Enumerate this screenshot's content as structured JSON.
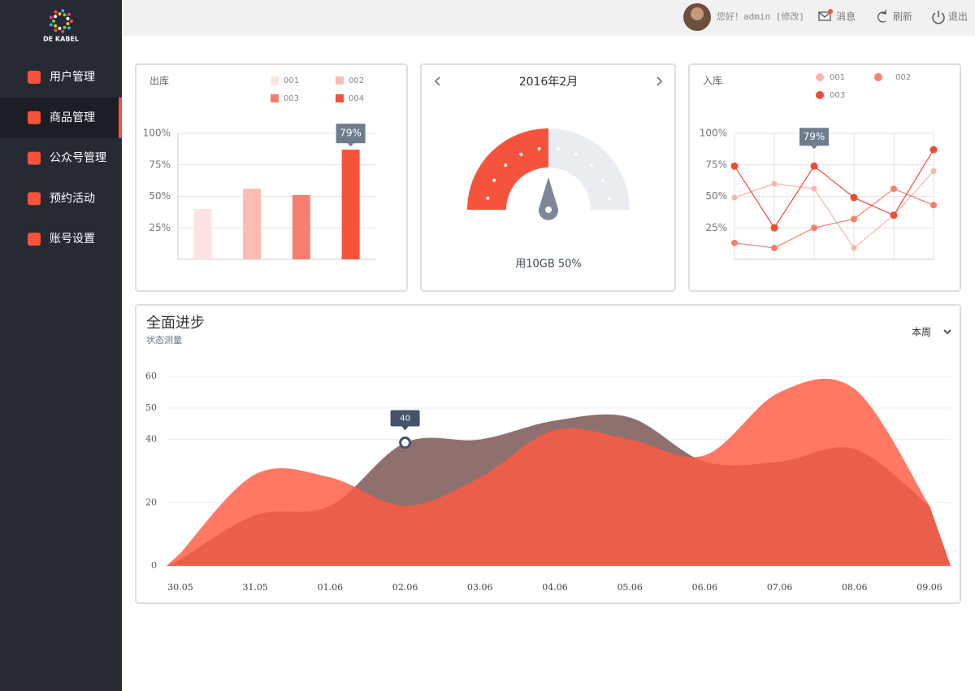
{
  "brand": "DE KABEL",
  "header": {
    "greeting": "您好！admin [修改]",
    "messages": "消息",
    "refresh": "刷新",
    "logout": "退出"
  },
  "sidebar": {
    "items": [
      "用户管理",
      "商品管理",
      "公众号管理",
      "预约活动",
      "账号设置"
    ],
    "active": 1
  },
  "chart_data": [
    {
      "type": "bar",
      "title": "出库",
      "categories": [
        "001",
        "002",
        "003",
        "004"
      ],
      "values": [
        40,
        56,
        51,
        87
      ],
      "colors": [
        "#fde3df",
        "#fbbcb1",
        "#f77e6e",
        "#f5533d"
      ],
      "ylim": [
        0,
        100
      ],
      "yticks": [
        {
          "value": 25,
          "label": "25%"
        },
        {
          "value": 50,
          "label": "50%"
        },
        {
          "value": 75,
          "label": "75%"
        },
        {
          "value": 100,
          "label": "100%"
        }
      ],
      "grid": true,
      "tooltip": "79%"
    },
    {
      "type": "gauge",
      "title": "2016年2月",
      "value": 50,
      "label": "用10GB 50%",
      "ylim": [
        0,
        100
      ],
      "color": "#f5533d",
      "track_color": "#e9ecf1"
    },
    {
      "type": "line",
      "title": "入库",
      "categories": [
        null,
        null,
        null,
        null,
        null,
        null
      ],
      "series": [
        {
          "name": "001",
          "color": "#f9b4a8",
          "values": [
            49,
            60,
            56,
            9,
            35,
            70
          ]
        },
        {
          "name": "002",
          "color": "#f77e6e",
          "values": [
            13,
            9,
            25,
            32,
            56,
            43
          ]
        },
        {
          "name": "003",
          "color": "#f24a35",
          "values": [
            74,
            25,
            74,
            49,
            35,
            87
          ]
        }
      ],
      "ylim": [
        0,
        100
      ],
      "yticks": [
        {
          "value": 25,
          "label": "25%"
        },
        {
          "value": 50,
          "label": "50%"
        },
        {
          "value": 75,
          "label": "75%"
        },
        {
          "value": 100,
          "label": "100%"
        }
      ],
      "grid": true,
      "tooltip": "79%"
    },
    {
      "type": "area",
      "title": "全面进步",
      "subtitle": "状态测量",
      "period": "本周",
      "categories": [
        "30.05",
        "31.05",
        "01.06",
        "02.06",
        "03.06",
        "04.06",
        "05.06",
        "06.06",
        "07.06",
        "08.06",
        "09.06"
      ],
      "series": [
        {
          "color": "#8e706f",
          "values": [
            2,
            16,
            19,
            39,
            40,
            46,
            47,
            33,
            33,
            37,
            19
          ]
        },
        {
          "color": "#ff5a42",
          "values": [
            4,
            29,
            28,
            19,
            28,
            43,
            40,
            35,
            55,
            56,
            19
          ]
        }
      ],
      "ylim": [
        0,
        60
      ],
      "yticks": [
        0,
        20,
        40,
        50,
        60
      ],
      "grid": true,
      "annotation": "40"
    }
  ]
}
